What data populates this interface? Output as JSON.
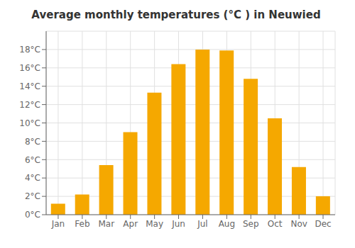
{
  "chart_data": {
    "type": "bar",
    "title": "Average monthly temperatures (°C ) in Neuwied",
    "categories": [
      "Jan",
      "Feb",
      "Mar",
      "Apr",
      "May",
      "Jun",
      "Jul",
      "Aug",
      "Sep",
      "Oct",
      "Nov",
      "Dec"
    ],
    "values": [
      1.2,
      2.2,
      5.4,
      9.0,
      13.3,
      16.4,
      18.0,
      17.9,
      14.8,
      10.5,
      5.2,
      2.0
    ],
    "color": "#F5A800",
    "ylim": [
      0,
      20
    ],
    "yticks": [
      {
        "value": 0,
        "label": "0°C"
      },
      {
        "value": 2,
        "label": "2°C"
      },
      {
        "value": 4,
        "label": "4°C"
      },
      {
        "value": 6,
        "label": "6°C"
      },
      {
        "value": 8,
        "label": "8°C"
      },
      {
        "value": 10,
        "label": "10°C"
      },
      {
        "value": 12,
        "label": "12°C"
      },
      {
        "value": 14,
        "label": "14°C"
      },
      {
        "value": 16,
        "label": "16°C"
      },
      {
        "value": 18,
        "label": "18°C"
      }
    ],
    "grid": true
  }
}
